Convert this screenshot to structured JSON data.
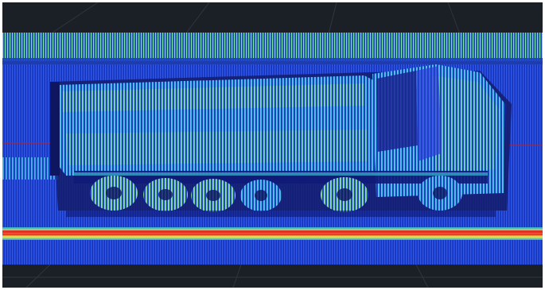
{
  "scene": {
    "subject": "truck-point-cloud",
    "colors": {
      "background": "#1b1f26",
      "grid_line": "#3a3f48",
      "ground_blue": "#1f3fd0",
      "ground_deep_blue": "#0f1f9a",
      "cyan": "#39d6e8",
      "green": "#7ff07a",
      "yellow": "#e9f04a",
      "red": "#e0201c",
      "navy_body": "#18217a"
    }
  }
}
